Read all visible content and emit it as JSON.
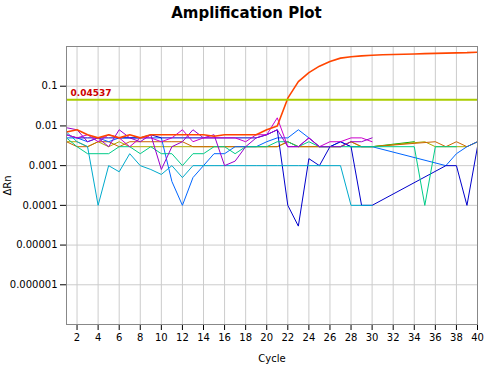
{
  "chart_data": {
    "type": "line",
    "title": "Amplification Plot",
    "xlabel": "Cycle",
    "ylabel": "ΔRn",
    "log": "y",
    "grid": true,
    "xlim": [
      1,
      40
    ],
    "xticks": [
      2,
      4,
      6,
      8,
      10,
      12,
      14,
      16,
      18,
      20,
      22,
      24,
      26,
      28,
      30,
      32,
      34,
      36,
      38,
      40
    ],
    "ylim": [
      1e-07,
      1
    ],
    "yticks": [
      1e-06,
      1e-05,
      0.0001,
      0.001,
      0.01,
      0.1
    ],
    "x": [
      1,
      2,
      3,
      4,
      5,
      6,
      7,
      8,
      9,
      10,
      11,
      12,
      13,
      14,
      15,
      16,
      17,
      18,
      19,
      20,
      21,
      22,
      23,
      24,
      25,
      26,
      27,
      28,
      29,
      30,
      31,
      32,
      33,
      34,
      35,
      36,
      37,
      38,
      39,
      40
    ],
    "series": [
      {
        "color": "#FF4500",
        "values": [
          0.007,
          0.008,
          0.006,
          0.005,
          0.006,
          0.005,
          0.006,
          0.005,
          0.006,
          0.006,
          0.006,
          0.006,
          0.006,
          0.006,
          0.0055,
          0.006,
          0.006,
          0.006,
          0.006,
          0.008,
          0.01,
          0.05,
          0.13,
          0.22,
          0.32,
          0.42,
          0.51,
          0.55,
          0.58,
          0.6,
          0.62,
          0.63,
          0.64,
          0.65,
          0.66,
          0.67,
          0.68,
          0.69,
          0.7,
          0.72
        ]
      },
      {
        "color": "#9900CC",
        "values": [
          0.009,
          0.008,
          0.004,
          0.005,
          0.003,
          0.008,
          0.005,
          0.004,
          0.006,
          0.0008,
          0.003,
          0.004,
          0.008,
          0.005,
          0.006,
          0.001,
          0.0013,
          0.003,
          0.005,
          0.006,
          0.008,
          0.003,
          0.003,
          0.005,
          0.003,
          0.003,
          0.003,
          0.004,
          0.004,
          0.005,
          null,
          null,
          null,
          null,
          null,
          null,
          null,
          null,
          null,
          null
        ]
      },
      {
        "color": "#CC00CC",
        "values": [
          0.006,
          0.005,
          0.006,
          0.004,
          0.006,
          0.005,
          0.003,
          0.005,
          0.005,
          0.004,
          0.005,
          0.008,
          0.004,
          0.005,
          0.005,
          0.005,
          0.005,
          0.004,
          0.006,
          0.006,
          0.016,
          0.003,
          0.003,
          0.005,
          0.003,
          0.004,
          0.004,
          0.005,
          0.005,
          0.004,
          null,
          null,
          null,
          null,
          null,
          null,
          null,
          null,
          null,
          null
        ]
      },
      {
        "color": "#00AACC",
        "values": [
          0.007,
          0.004,
          0.003,
          0.0001,
          0.001,
          0.0007,
          0.002,
          0.001,
          0.0008,
          0.0006,
          0.001,
          0.0005,
          0.001,
          0.001,
          0.001,
          0.001,
          0.001,
          0.001,
          0.001,
          0.001,
          0.001,
          0.001,
          0.001,
          0.001,
          0.001,
          0.001,
          0.001,
          0.0001,
          0.0001,
          0.0001,
          null,
          null,
          null,
          null,
          null,
          null,
          null,
          null,
          null,
          null
        ]
      },
      {
        "color": "#00CC88",
        "values": [
          0.005,
          0.003,
          0.002,
          0.002,
          0.002,
          0.003,
          0.003,
          0.002,
          0.003,
          0.002,
          0.002,
          0.001,
          0.002,
          0.002,
          0.003,
          0.003,
          0.002,
          0.003,
          0.003,
          0.003,
          0.004,
          0.004,
          0.003,
          0.004,
          0.003,
          0.003,
          0.003,
          0.003,
          0.003,
          0.003,
          null,
          null,
          null,
          0.003,
          0.0001,
          0.003,
          0.003,
          0.003,
          null,
          null
        ]
      },
      {
        "color": "#0000CC",
        "values": [
          0.006,
          0.005,
          0.005,
          0.005,
          0.005,
          0.005,
          0.005,
          0.005,
          0.006,
          0.005,
          0.005,
          0.005,
          0.005,
          0.005,
          0.005,
          0.005,
          0.005,
          0.005,
          0.005,
          0.006,
          0.008,
          0.0001,
          3e-05,
          0.0015,
          0.001,
          0.003,
          0.004,
          0.003,
          0.0001,
          0.0001,
          null,
          null,
          null,
          null,
          null,
          null,
          0.001,
          0.001,
          0.0001,
          0.003
        ]
      },
      {
        "color": "#0066FF",
        "values": [
          0.005,
          0.005,
          0.004,
          0.005,
          0.004,
          0.005,
          0.005,
          0.005,
          0.005,
          0.005,
          0.0004,
          0.0001,
          0.0005,
          0.001,
          0.002,
          0.002,
          0.003,
          0.003,
          0.003,
          0.004,
          0.005,
          0.005,
          0.008,
          0.005,
          0.003,
          0.003,
          0.004,
          0.003,
          0.003,
          0.003,
          null,
          null,
          null,
          null,
          null,
          null,
          0.001,
          0.002,
          0.003,
          0.004
        ]
      },
      {
        "color": "#CC6600",
        "values": [
          0.004,
          0.003,
          0.003,
          0.004,
          0.004,
          0.003,
          0.004,
          0.004,
          0.004,
          0.004,
          0.004,
          0.004,
          0.003,
          0.003,
          0.003,
          0.003,
          0.003,
          0.003,
          0.003,
          0.003,
          0.003,
          0.004,
          0.003,
          0.003,
          0.003,
          0.003,
          0.003,
          0.004,
          0.003,
          0.003,
          null,
          null,
          null,
          null,
          null,
          0.004,
          0.003,
          0.004,
          0.003,
          0.004
        ]
      },
      {
        "color": "#AAAA00",
        "values": [
          0.004,
          0.004,
          0.003,
          0.004,
          0.003,
          0.004,
          0.003,
          0.003,
          0.003,
          0.003,
          0.003,
          0.003,
          0.003,
          0.003,
          0.003,
          0.003,
          0.003,
          0.003,
          0.003,
          0.003,
          0.003,
          0.004,
          0.003,
          0.003,
          0.003,
          0.003,
          0.003,
          0.004,
          0.003,
          0.003,
          null,
          null,
          null,
          null,
          0.004,
          0.003,
          0.003,
          0.003,
          0.003,
          0.004
        ]
      },
      {
        "color": "#00AA00",
        "values": [
          null,
          null,
          null,
          null,
          null,
          null,
          null,
          null,
          null,
          null,
          null,
          null,
          null,
          null,
          null,
          null,
          null,
          null,
          null,
          null,
          null,
          null,
          null,
          null,
          null,
          null,
          null,
          0.003,
          0.003,
          0.003,
          null,
          null,
          null,
          0.004,
          null,
          null,
          null,
          null,
          null,
          null
        ]
      }
    ],
    "threshold": {
      "value": 0.04537,
      "label": "0.04537",
      "color": "#AACC00",
      "label_color": "#CC0000"
    }
  }
}
